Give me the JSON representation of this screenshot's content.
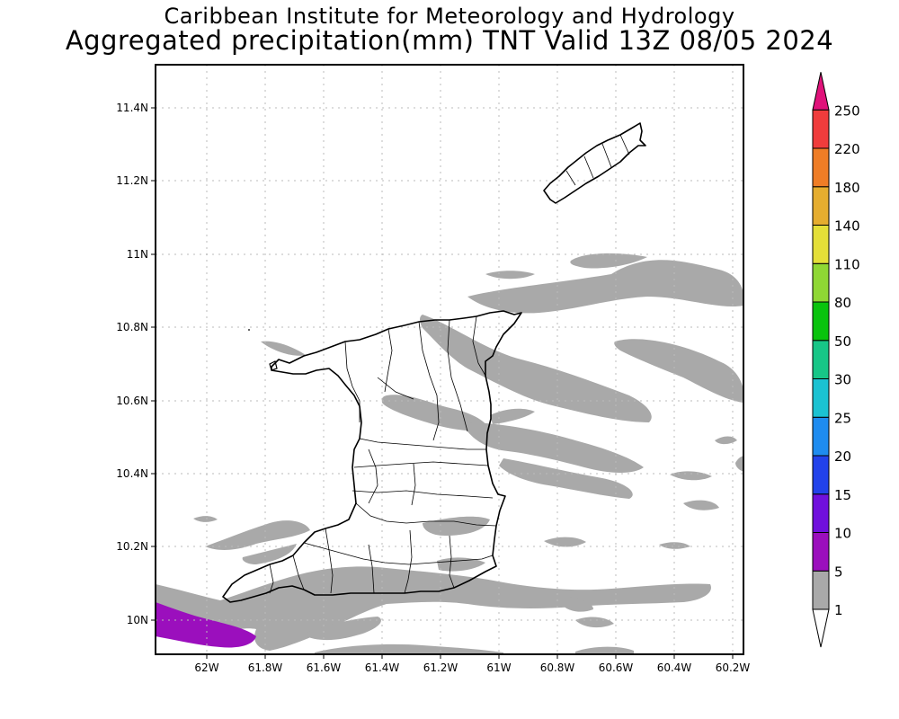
{
  "title": {
    "line1": "Caribbean Institute for Meteorology and Hydrology",
    "line2": "Aggregated precipitation(mm) TNT Valid 13Z 08/05 2024"
  },
  "axes": {
    "lat_ticks": [
      "11.4N",
      "11.2N",
      "11N",
      "10.8N",
      "10.6N",
      "10.4N",
      "10.2N",
      "10N"
    ],
    "lon_ticks": [
      "62W",
      "61.8W",
      "61.6W",
      "61.4W",
      "61.2W",
      "61W",
      "60.8W",
      "60.6W",
      "60.4W",
      "60.2W"
    ],
    "grid": true
  },
  "colorbar": {
    "levels": [
      "1",
      "5",
      "10",
      "15",
      "20",
      "25",
      "30",
      "50",
      "80",
      "110",
      "140",
      "180",
      "220",
      "250"
    ],
    "colors": [
      "#ffffff",
      "#a9a9a9",
      "#9b0fbd",
      "#7010dd",
      "#2242ea",
      "#1e8cf0",
      "#1bc2d2",
      "#17c687",
      "#09c30d",
      "#8fd734",
      "#e4df38",
      "#e5ad2f",
      "#ef7d26",
      "#f03c3c",
      "#e0127a"
    ]
  },
  "map_colors": {
    "light_rain": "#a9a9a9",
    "heavy_rain": "#9b0fbd",
    "coastline": "#000000"
  }
}
